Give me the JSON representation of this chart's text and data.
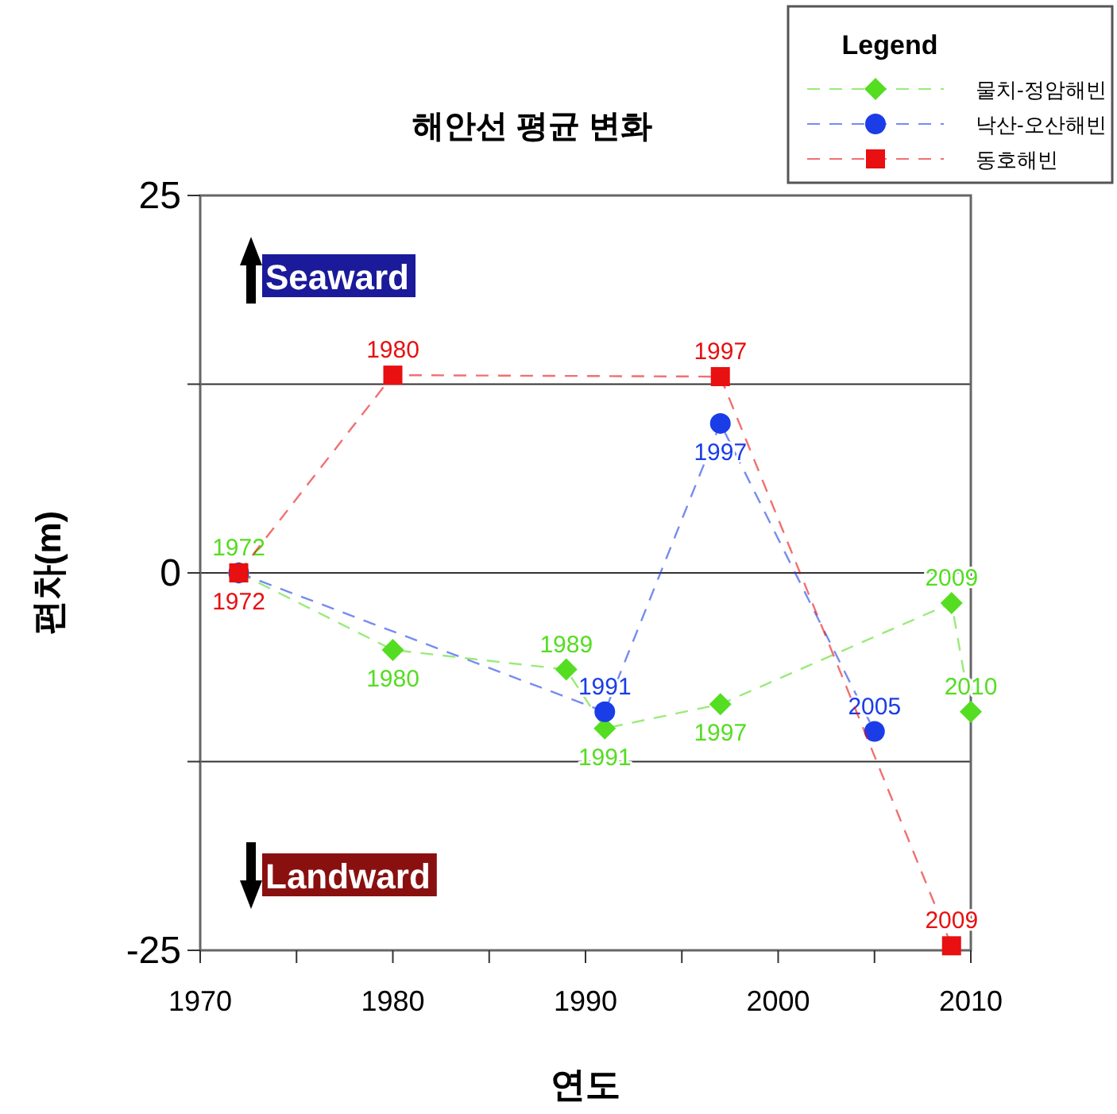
{
  "chart_data": {
    "type": "line",
    "title": "해안선 평균 변화",
    "xlabel": "연도",
    "ylabel": "편차(m)",
    "legend_title": "Legend",
    "legend": "top right",
    "grid": "y",
    "line_style": "dashed",
    "xlim": [
      1970,
      2010
    ],
    "ylim": [
      -25,
      25
    ],
    "xticks": [
      1970,
      {
        "value": 1975,
        "label": null
      },
      1980,
      {
        "value": 1985,
        "label": null
      },
      1990,
      {
        "value": 1995,
        "label": null
      },
      2000,
      {
        "value": 2005,
        "label": null
      },
      2010
    ],
    "yticks": [
      -25,
      {
        "value": -12.5,
        "label": null
      },
      0,
      {
        "value": 12.5,
        "label": null
      },
      25
    ],
    "annotations": [
      "Seaward",
      "Landward",
      {
        "text": "1972",
        "x": 1972,
        "y": 0
      },
      {
        "text": "1980",
        "x": 1980,
        "y": -5.1
      },
      {
        "text": "1989",
        "x": 1989,
        "y": -6.4
      },
      {
        "text": "1991",
        "x": 1991,
        "y": -10.3
      },
      {
        "text": "1997",
        "x": 1997,
        "y": -8.7
      },
      {
        "text": "2009",
        "x": 2009,
        "y": -2.0
      },
      {
        "text": "2010",
        "x": 2010,
        "y": -9.2
      },
      {
        "text": "1972",
        "x": 1972,
        "y": 0
      },
      {
        "text": "1980",
        "x": 1980,
        "y": 13.1
      },
      {
        "text": "1997",
        "x": 1997,
        "y": 13.0
      },
      {
        "text": "2009",
        "x": 2009,
        "y": -24.7
      },
      {
        "text": "1991",
        "x": 1991,
        "y": -9.2
      },
      {
        "text": "1997",
        "x": 1997,
        "y": 9.9
      },
      {
        "text": "2005",
        "x": 2005,
        "y": -10.5
      }
    ],
    "series": [
      {
        "name": "물치-정암해빈",
        "color": "#55dd22",
        "marker": "diamond",
        "x": [
          1972,
          1980,
          1989,
          1991,
          1997,
          2009,
          2010
        ],
        "values": [
          0,
          -5.1,
          -6.4,
          -10.3,
          -8.7,
          -2.0,
          -9.2
        ]
      },
      {
        "name": "낙산-오산해빈",
        "color": "#1a3de8",
        "marker": "circle",
        "x": [
          1972,
          1991,
          1997,
          2005
        ],
        "values": [
          0,
          -9.2,
          9.9,
          -10.5
        ]
      },
      {
        "name": "동호해빈",
        "color": "#e81010",
        "marker": "square",
        "x": [
          1972,
          1980,
          1997,
          2009
        ],
        "values": [
          0,
          13.1,
          13.0,
          -24.7
        ]
      }
    ]
  }
}
